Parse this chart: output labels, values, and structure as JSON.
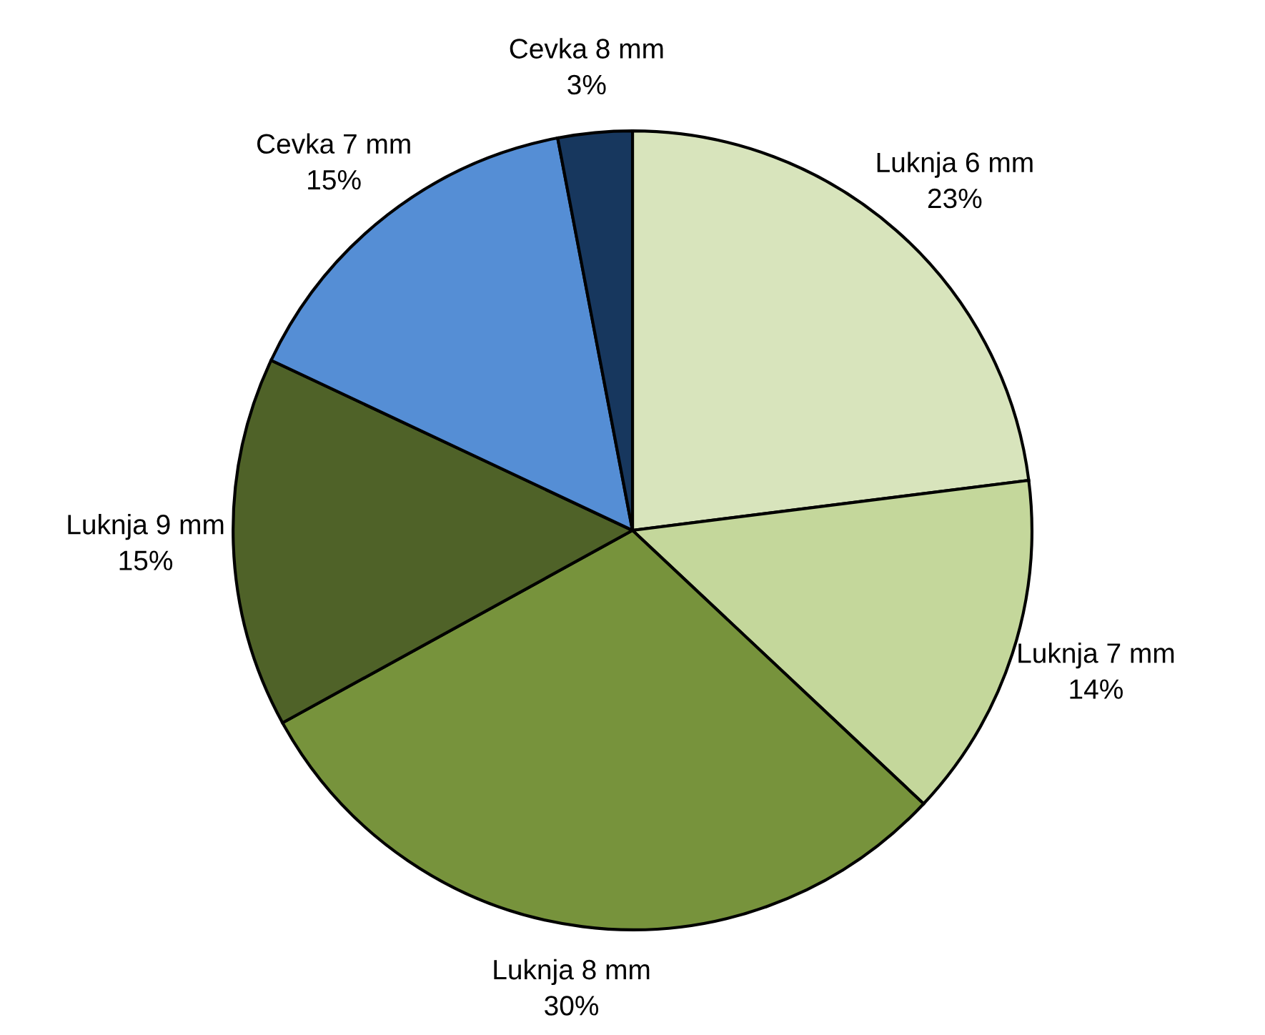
{
  "chart_data": {
    "type": "pie",
    "categories": [
      "Luknja 6 mm",
      "Luknja 7 mm",
      "Luknja 8 mm",
      "Luknja 9 mm",
      "Cevka 7 mm",
      "Cevka 8 mm"
    ],
    "values": [
      23,
      14,
      30,
      15,
      15,
      3
    ],
    "colors": [
      "#d8e4bc",
      "#c4d79b",
      "#77933c",
      "#4f6228",
      "#558ed5",
      "#17375e"
    ],
    "value_labels": [
      "23%",
      "14%",
      "30%",
      "15%",
      "15%",
      "3%"
    ],
    "legend": false
  }
}
